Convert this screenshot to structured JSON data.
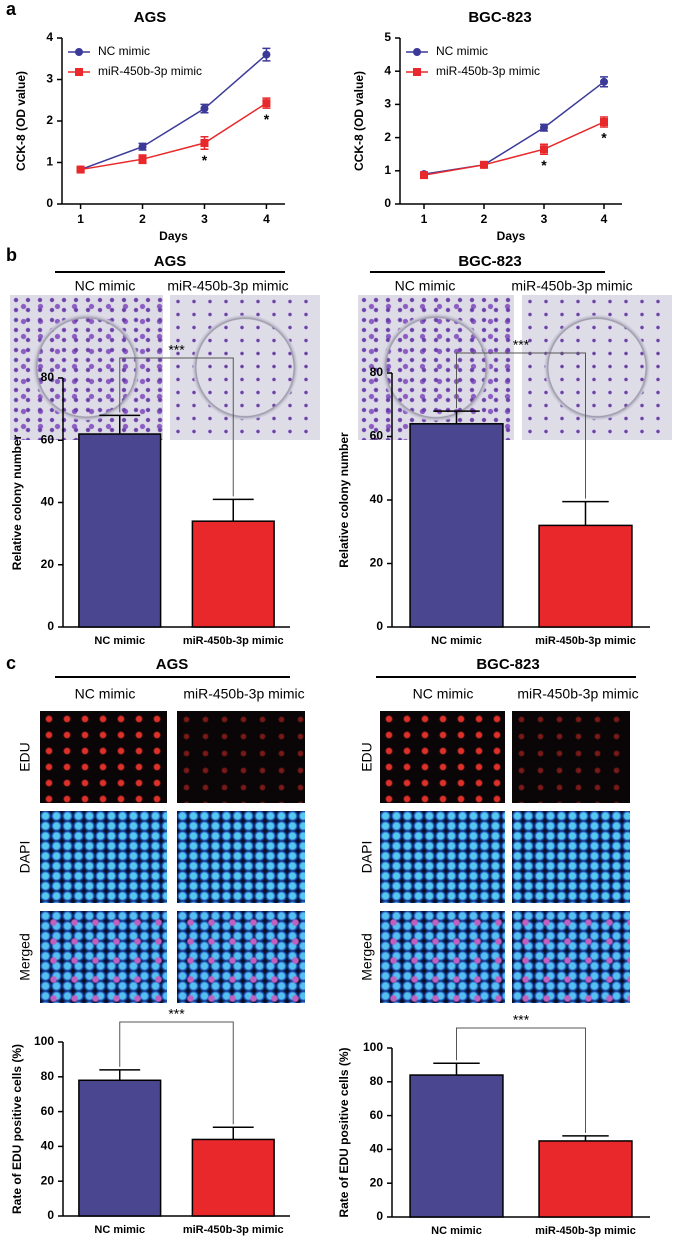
{
  "figure": {
    "panels": [
      "a",
      "b",
      "c"
    ],
    "colony": {
      "groups": [
        {
          "title": "AGS",
          "columns": [
            "NC mimic",
            "miR-450b-3p mimic"
          ]
        },
        {
          "title": "BGC-823",
          "columns": [
            "NC mimic",
            "miR-450b-3p mimic"
          ]
        }
      ]
    },
    "edu": {
      "groups": [
        {
          "title": "AGS",
          "columns": [
            "NC mimic",
            "miR-450b-3p mimic"
          ],
          "rows": [
            "EDU",
            "DAPI",
            "Merged"
          ]
        },
        {
          "title": "BGC-823",
          "columns": [
            "NC mimic",
            "miR-450b-3p mimic"
          ],
          "rows": [
            "EDU",
            "DAPI",
            "Merged"
          ]
        }
      ]
    }
  },
  "chart_data": [
    {
      "type": "line",
      "title": "AGS",
      "x_label": "Days",
      "y_label": "CCK-8 (OD value)",
      "x": [
        1,
        2,
        3,
        4
      ],
      "xlim": [
        0.7,
        4.3
      ],
      "xticks": [
        1,
        2,
        3,
        4
      ],
      "ylim": [
        0,
        4
      ],
      "yticks": [
        0,
        1,
        2,
        3,
        4
      ],
      "series": [
        {
          "name": "NC mimic",
          "color": "#3b3a98",
          "marker": "circle",
          "values": [
            0.83,
            1.38,
            2.3,
            3.6
          ],
          "errors": [
            0.04,
            0.08,
            0.1,
            0.15
          ]
        },
        {
          "name": "miR-450b-3p mimic",
          "color": "#e8282a",
          "marker": "square",
          "values": [
            0.83,
            1.08,
            1.47,
            2.43
          ],
          "errors": [
            0.04,
            0.1,
            0.15,
            0.12
          ]
        }
      ],
      "annotations": [
        {
          "x": 3,
          "text": "*"
        },
        {
          "x": 4,
          "text": "*"
        }
      ]
    },
    {
      "type": "line",
      "title": "BGC-823",
      "x_label": "Days",
      "y_label": "CCK-8 (OD value)",
      "x": [
        1,
        2,
        3,
        4
      ],
      "xlim": [
        0.6,
        4.3
      ],
      "xticks": [
        1,
        2,
        3,
        4
      ],
      "ylim": [
        0,
        5
      ],
      "yticks": [
        0,
        1,
        2,
        3,
        4,
        5
      ],
      "series": [
        {
          "name": "NC mimic",
          "color": "#3b3a98",
          "marker": "circle",
          "values": [
            0.9,
            1.18,
            2.3,
            3.68
          ],
          "errors": [
            0.04,
            0.05,
            0.1,
            0.15
          ]
        },
        {
          "name": "miR-450b-3p mimic",
          "color": "#e8282a",
          "marker": "square",
          "values": [
            0.87,
            1.18,
            1.65,
            2.47
          ],
          "errors": [
            0.04,
            0.05,
            0.15,
            0.15
          ]
        }
      ],
      "annotations": [
        {
          "x": 3,
          "text": "*"
        },
        {
          "x": 4,
          "text": "*"
        }
      ]
    },
    {
      "type": "bar",
      "y_label": "Relative colony number",
      "categories": [
        "NC mimic",
        "miR-450b-3p mimic"
      ],
      "values": [
        62,
        34
      ],
      "errors": [
        6,
        7
      ],
      "colors": [
        "#4a4690",
        "#e8282a"
      ],
      "ylim": [
        0,
        80
      ],
      "yticks": [
        0,
        20,
        40,
        60,
        80
      ],
      "significance": "***"
    },
    {
      "type": "bar",
      "y_label": "Relative colony number",
      "categories": [
        "NC mimic",
        "miR-450b-3p mimic"
      ],
      "values": [
        64,
        32
      ],
      "errors": [
        4,
        7.5
      ],
      "colors": [
        "#4a4690",
        "#e8282a"
      ],
      "ylim": [
        0,
        80
      ],
      "yticks": [
        0,
        20,
        40,
        60,
        80
      ],
      "significance": "***"
    },
    {
      "type": "bar",
      "y_label": "Rate of EDU positive cells (%)",
      "categories": [
        "NC mimic",
        "miR-450b-3p mimic"
      ],
      "values": [
        78,
        44
      ],
      "errors": [
        6,
        7
      ],
      "colors": [
        "#4a4690",
        "#e8282a"
      ],
      "ylim": [
        0,
        100
      ],
      "yticks": [
        0,
        20,
        40,
        60,
        80,
        100
      ],
      "significance": "***"
    },
    {
      "type": "bar",
      "y_label": "Rate of EDU positive cells (%)",
      "categories": [
        "NC mimic",
        "miR-450b-3p mimic"
      ],
      "values": [
        84,
        45
      ],
      "errors": [
        7,
        3
      ],
      "colors": [
        "#4a4690",
        "#e8282a"
      ],
      "ylim": [
        0,
        100
      ],
      "yticks": [
        0,
        20,
        40,
        60,
        80,
        100
      ],
      "significance": "***"
    }
  ]
}
